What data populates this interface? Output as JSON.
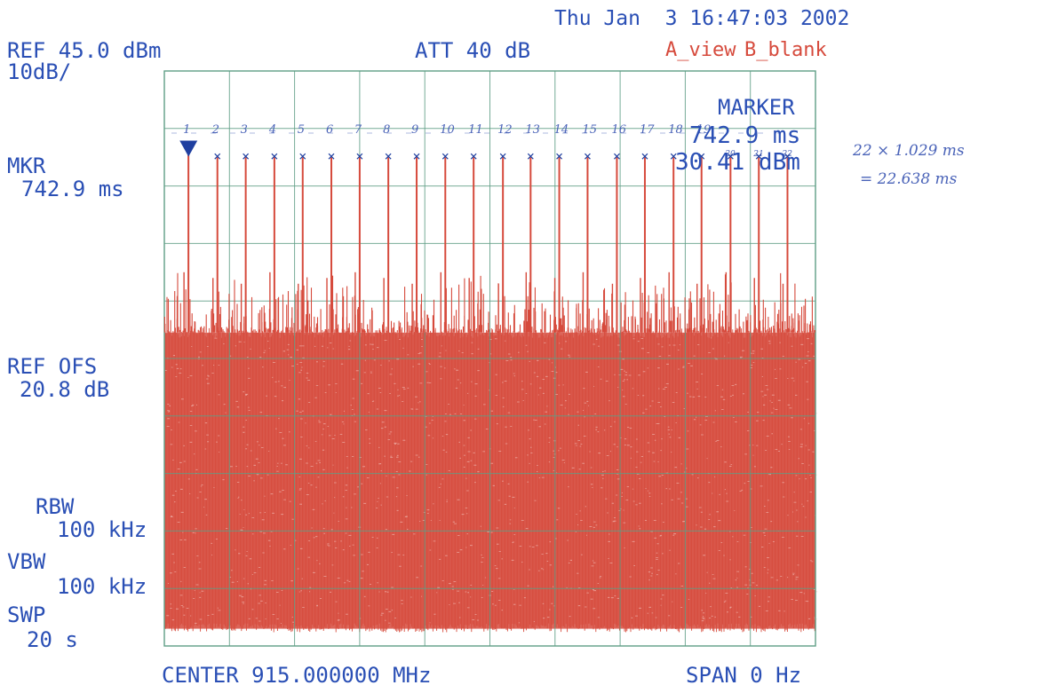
{
  "header": {
    "datetime": "Thu Jan  3 16:47:03 2002",
    "ref_level": "REF 45.0 dBm",
    "scale": "10dB/",
    "attenuation": "ATT 40 dB",
    "trace_a": "A_view",
    "trace_b": "B_blank"
  },
  "left_panel": {
    "mkr_label": "MKR",
    "mkr_value": "742.9 ms",
    "ref_ofs_label": "REF OFS",
    "ref_ofs_value": "20.8 dB",
    "rbw_label": "RBW",
    "rbw_value": "100 kHz",
    "vbw_label": "VBW",
    "vbw_value": "100 kHz",
    "swp_label": "SWP",
    "swp_value": "20 s"
  },
  "marker_readout": {
    "title": "MARKER",
    "time": "742.9 ms",
    "level": "30.41 dBm"
  },
  "footer": {
    "center": "CENTER 915.000000 MHz",
    "span": "SPAN 0 Hz"
  },
  "annotations": {
    "pulse_numbers": [
      "1",
      "2",
      "3",
      "4",
      "5",
      "6",
      "7",
      "8",
      "9",
      "10",
      "11",
      "12",
      "13",
      "14",
      "15",
      "16",
      "17",
      "18",
      "19",
      "20",
      "21",
      "22"
    ],
    "calc_line1": "22 × 1.029 ms",
    "calc_line2": "= 22.638 ms"
  },
  "colors": {
    "trace": "#d64a3c",
    "text": "#2a4fb5",
    "grid": "#5f9e86",
    "marker": "#1f3fa0"
  },
  "chart_data": {
    "type": "line",
    "title": "",
    "xlabel": "",
    "ylabel": "",
    "x_unit": "s",
    "y_unit": "dBm",
    "xlim": [
      0,
      20
    ],
    "ylim": [
      -55,
      45
    ],
    "grid": true,
    "divisions": {
      "x": 10,
      "y": 10
    },
    "noise_floor_top_dbm": -0.5,
    "noise_floor_bottom_dbm": -52,
    "series": [
      {
        "pulse_times": [
          0.74,
          1.63,
          2.5,
          3.38,
          4.25,
          5.13,
          6.0,
          6.88,
          7.75,
          8.63,
          9.5,
          10.4,
          11.25,
          12.13,
          13.0,
          13.9,
          14.76,
          15.64,
          16.5,
          17.39,
          18.26,
          19.14
        ],
        "pulse_peaks_dbm": [
          30.41,
          30.0,
          30.0,
          30.0,
          30.0,
          30.0,
          30.0,
          30.0,
          30.0,
          30.0,
          30.0,
          30.0,
          30.0,
          30.0,
          30.0,
          30.0,
          30.0,
          30.0,
          30.0,
          30.0,
          30.0,
          30.0
        ],
        "echo_peaks_dbm": [
          10,
          9,
          8,
          10,
          8,
          9,
          10,
          9,
          8,
          10,
          9,
          8,
          10,
          9,
          10,
          8,
          9,
          10,
          8,
          10,
          9,
          8
        ]
      }
    ],
    "marker": {
      "time_ms": 742.9,
      "level_dbm": 30.41
    }
  }
}
